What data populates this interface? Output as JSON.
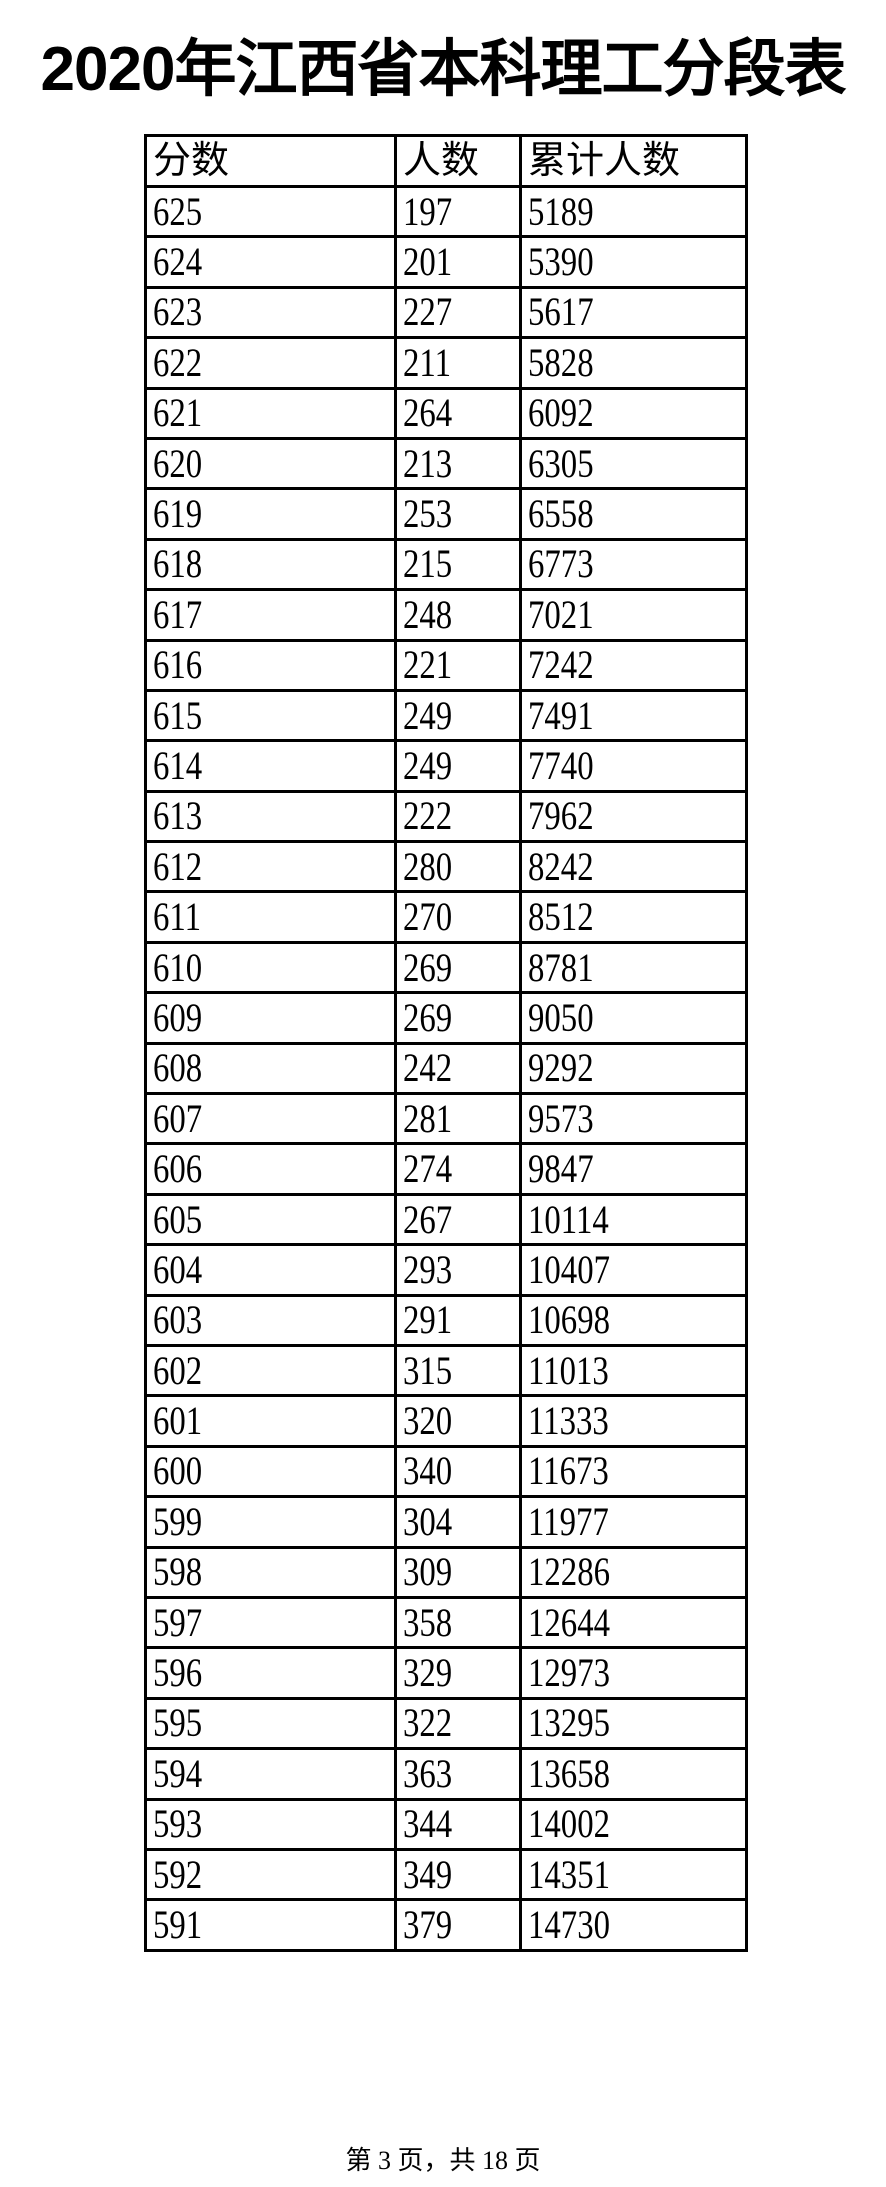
{
  "title": "2020年江西省本科理工分段表",
  "table": {
    "headers": [
      "分数",
      "人数",
      "累计人数"
    ],
    "rows": [
      [
        "625",
        "197",
        "5189"
      ],
      [
        "624",
        "201",
        "5390"
      ],
      [
        "623",
        "227",
        "5617"
      ],
      [
        "622",
        "211",
        "5828"
      ],
      [
        "621",
        "264",
        "6092"
      ],
      [
        "620",
        "213",
        "6305"
      ],
      [
        "619",
        "253",
        "6558"
      ],
      [
        "618",
        "215",
        "6773"
      ],
      [
        "617",
        "248",
        "7021"
      ],
      [
        "616",
        "221",
        "7242"
      ],
      [
        "615",
        "249",
        "7491"
      ],
      [
        "614",
        "249",
        "7740"
      ],
      [
        "613",
        "222",
        "7962"
      ],
      [
        "612",
        "280",
        "8242"
      ],
      [
        "611",
        "270",
        "8512"
      ],
      [
        "610",
        "269",
        "8781"
      ],
      [
        "609",
        "269",
        "9050"
      ],
      [
        "608",
        "242",
        "9292"
      ],
      [
        "607",
        "281",
        "9573"
      ],
      [
        "606",
        "274",
        "9847"
      ],
      [
        "605",
        "267",
        "10114"
      ],
      [
        "604",
        "293",
        "10407"
      ],
      [
        "603",
        "291",
        "10698"
      ],
      [
        "602",
        "315",
        "11013"
      ],
      [
        "601",
        "320",
        "11333"
      ],
      [
        "600",
        "340",
        "11673"
      ],
      [
        "599",
        "304",
        "11977"
      ],
      [
        "598",
        "309",
        "12286"
      ],
      [
        "597",
        "358",
        "12644"
      ],
      [
        "596",
        "329",
        "12973"
      ],
      [
        "595",
        "322",
        "13295"
      ],
      [
        "594",
        "363",
        "13658"
      ],
      [
        "593",
        "344",
        "14002"
      ],
      [
        "592",
        "349",
        "14351"
      ],
      [
        "591",
        "379",
        "14730"
      ]
    ]
  },
  "footer": "第 3 页，共 18 页"
}
